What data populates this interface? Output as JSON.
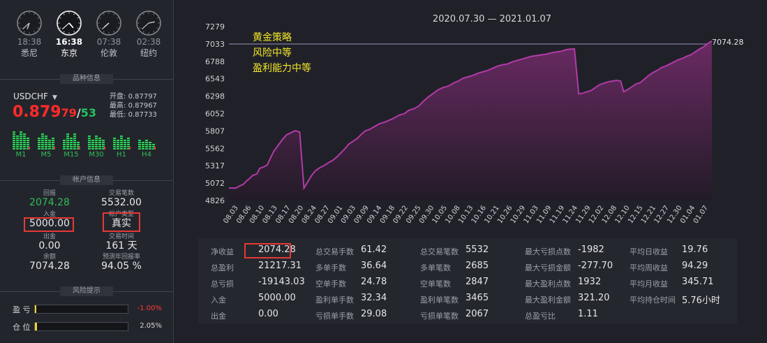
{
  "clocks": [
    {
      "time": "18:38",
      "city": "悉尼",
      "active": false,
      "h": 18.63,
      "m": 38
    },
    {
      "time": "16:38",
      "city": "东京",
      "active": true,
      "h": 16.63,
      "m": 38
    },
    {
      "time": "07:38",
      "city": "伦敦",
      "active": false,
      "h": 7.63,
      "m": 38
    },
    {
      "time": "02:38",
      "city": "纽约",
      "active": false,
      "h": 2.63,
      "m": 38
    }
  ],
  "sections": {
    "symbol_info": "品种信息",
    "account_info": "帐户信息",
    "risk_tips": "风险提示"
  },
  "symbol": {
    "name": "USDCHF",
    "price_main": "0.879",
    "price_digits": "79",
    "price_slash": "/",
    "price_spread": "53",
    "quotes": [
      {
        "label": "开盘:",
        "value": "0.87797"
      },
      {
        "label": "最高:",
        "value": "0.87967"
      },
      {
        "label": "最低:",
        "value": "0.87733"
      }
    ]
  },
  "timeframes": [
    {
      "label": "M1",
      "levels": [
        0.85,
        0.65,
        0.9,
        0.75,
        0.6
      ]
    },
    {
      "label": "M5",
      "levels": [
        0.55,
        0.8,
        0.7,
        0.45,
        0.6
      ]
    },
    {
      "label": "M15",
      "levels": [
        0.5,
        0.75,
        0.6,
        0.8,
        0.4
      ]
    },
    {
      "label": "M30",
      "levels": [
        0.7,
        0.5,
        0.65,
        0.55,
        0.45
      ]
    },
    {
      "label": "H1",
      "levels": [
        0.6,
        0.45,
        0.7,
        0.5,
        0.55
      ]
    },
    {
      "label": "H4",
      "levels": [
        0.45,
        0.35,
        0.5,
        0.4,
        0.3
      ]
    }
  ],
  "account": {
    "return_label": "回报",
    "return_value": "2074.28",
    "trades_label": "交易笔数",
    "trades_value": "5532.00",
    "deposit_label": "入金",
    "deposit_value": "5000.00",
    "type_label": "帐户类型",
    "type_value": "真实",
    "withdraw_label": "出金",
    "withdraw_value": "0.00",
    "time_label": "交易时间",
    "time_value": "161 天",
    "balance_label": "余额",
    "balance_value": "7074.28",
    "annual_label": "预测年回报率",
    "annual_value": "94.05 %"
  },
  "risk": [
    {
      "label": "盈 亏",
      "value": "-1.00%",
      "fill": 0.012,
      "color": "#ff3b3b"
    },
    {
      "label": "仓 位",
      "value": "2.05%",
      "fill": 0.02,
      "color": "#d9d9d9"
    }
  ],
  "chart_data": {
    "type": "area",
    "title": "2020.07.30 — 2021.01.07",
    "annotations": [
      "黄金策略",
      "风险中等",
      "盈利能力中等"
    ],
    "last_value_label": "7074.28",
    "y_ticks": [
      4826,
      5072,
      5317,
      5562,
      5807,
      6052,
      6298,
      6543,
      6788,
      7033,
      7279
    ],
    "ylim": [
      4826,
      7279
    ],
    "reference_line": 7033,
    "x_labels": [
      "08.03",
      "08.06",
      "08.10",
      "08.13",
      "08.17",
      "08.20",
      "08.24",
      "08.27",
      "09.01",
      "09.03",
      "09.09",
      "09.14",
      "09.18",
      "09.22",
      "09.25",
      "09.30",
      "10.05",
      "10.08",
      "10.13",
      "10.16",
      "10.21",
      "10.26",
      "10.29",
      "11.03",
      "11.09",
      "11.19",
      "11.24",
      "11.29",
      "12.02",
      "12.08",
      "12.10",
      "12.15",
      "12.21",
      "12.27",
      "12.30",
      "01.04",
      "01.07"
    ],
    "series": [
      {
        "points": [
          [
            0,
            5002
          ],
          [
            1,
            5000
          ],
          [
            1.5,
            5030
          ],
          [
            2,
            5050
          ],
          [
            2.5,
            5100
          ],
          [
            3,
            5140
          ],
          [
            3.4,
            5180
          ],
          [
            4,
            5200
          ],
          [
            4.4,
            5280
          ],
          [
            5,
            5300
          ],
          [
            5.5,
            5330
          ],
          [
            5.9,
            5420
          ],
          [
            6.4,
            5520
          ],
          [
            7,
            5600
          ],
          [
            7.6,
            5680
          ],
          [
            8.2,
            5750
          ],
          [
            8.8,
            5780
          ],
          [
            9.5,
            5810
          ],
          [
            10.1,
            5790
          ],
          [
            10.7,
            5000
          ],
          [
            11.2,
            5080
          ],
          [
            11.8,
            5180
          ],
          [
            12.4,
            5250
          ],
          [
            13,
            5290
          ],
          [
            13.6,
            5320
          ],
          [
            14.2,
            5360
          ],
          [
            14.8,
            5390
          ],
          [
            15.4,
            5440
          ],
          [
            16,
            5500
          ],
          [
            16.5,
            5550
          ],
          [
            17.1,
            5620
          ],
          [
            17.7,
            5660
          ],
          [
            18.3,
            5700
          ],
          [
            18.9,
            5760
          ],
          [
            19.5,
            5810
          ],
          [
            20.1,
            5830
          ],
          [
            20.8,
            5870
          ],
          [
            21.5,
            5910
          ],
          [
            22.2,
            5930
          ],
          [
            22.9,
            5960
          ],
          [
            23.6,
            5990
          ],
          [
            24.3,
            6030
          ],
          [
            25,
            6050
          ],
          [
            25.7,
            6100
          ],
          [
            26.4,
            6120
          ],
          [
            27.1,
            6160
          ],
          [
            27.8,
            6230
          ],
          [
            28.5,
            6290
          ],
          [
            29.2,
            6340
          ],
          [
            29.9,
            6390
          ],
          [
            30.6,
            6420
          ],
          [
            31.3,
            6440
          ],
          [
            32,
            6480
          ],
          [
            32.7,
            6510
          ],
          [
            33.4,
            6550
          ],
          [
            34.1,
            6570
          ],
          [
            34.8,
            6590
          ],
          [
            35.5,
            6620
          ],
          [
            36.2,
            6640
          ],
          [
            36.9,
            6660
          ],
          [
            37.6,
            6690
          ],
          [
            38.3,
            6720
          ],
          [
            39,
            6740
          ],
          [
            39.7,
            6750
          ],
          [
            40.4,
            6780
          ],
          [
            41.1,
            6800
          ],
          [
            41.8,
            6820
          ],
          [
            42.5,
            6840
          ],
          [
            43.2,
            6860
          ],
          [
            43.9,
            6870
          ],
          [
            44.6,
            6880
          ],
          [
            45.3,
            6890
          ],
          [
            46,
            6910
          ],
          [
            46.7,
            6920
          ],
          [
            47.4,
            6930
          ],
          [
            48,
            6950
          ],
          [
            48.6,
            6960
          ],
          [
            49.3,
            6965
          ],
          [
            49.9,
            6330
          ],
          [
            50.5,
            6340
          ],
          [
            51.1,
            6360
          ],
          [
            51.7,
            6380
          ],
          [
            52.3,
            6420
          ],
          [
            52.9,
            6460
          ],
          [
            53.5,
            6480
          ],
          [
            54.1,
            6500
          ],
          [
            54.7,
            6510
          ],
          [
            55.3,
            6520
          ],
          [
            55.9,
            6510
          ],
          [
            56.3,
            6360
          ],
          [
            56.9,
            6390
          ],
          [
            57.5,
            6430
          ],
          [
            58.1,
            6470
          ],
          [
            58.7,
            6490
          ],
          [
            59.3,
            6540
          ],
          [
            59.9,
            6590
          ],
          [
            60.5,
            6630
          ],
          [
            61.1,
            6660
          ],
          [
            61.7,
            6700
          ],
          [
            62.3,
            6720
          ],
          [
            62.9,
            6750
          ],
          [
            63.5,
            6780
          ],
          [
            64.1,
            6810
          ],
          [
            64.7,
            6830
          ],
          [
            65.3,
            6860
          ],
          [
            65.9,
            6880
          ],
          [
            66.5,
            6920
          ],
          [
            67.1,
            6960
          ],
          [
            67.7,
            6990
          ],
          [
            68.3,
            7040
          ],
          [
            68.9,
            7074.28
          ]
        ]
      }
    ],
    "x_max": 68.9,
    "colors": {
      "line": "#b23aa8",
      "fill_top": "#6a2a63",
      "fill_bottom": "#221b27",
      "ref_line": "#9a92c0",
      "annotation": "#f4e829"
    }
  },
  "stats": [
    [
      {
        "k": "净收益",
        "v": "2074.28"
      },
      {
        "k": "总交易手数",
        "v": "61.42"
      },
      {
        "k": "总交易笔数",
        "v": "5532"
      },
      {
        "k": "最大亏损点数",
        "v": "-1982"
      },
      {
        "k": "平均日收益",
        "v": "19.76"
      }
    ],
    [
      {
        "k": "总盈利",
        "v": "21217.31"
      },
      {
        "k": "多单手数",
        "v": "36.64"
      },
      {
        "k": "多单笔数",
        "v": "2685"
      },
      {
        "k": "最大亏损金额",
        "v": "-277.70"
      },
      {
        "k": "平均周收益",
        "v": "94.29"
      }
    ],
    [
      {
        "k": "总亏损",
        "v": "-19143.03"
      },
      {
        "k": "空单手数",
        "v": "24.78"
      },
      {
        "k": "空单笔数",
        "v": "2847"
      },
      {
        "k": "最大盈利点数",
        "v": "1932"
      },
      {
        "k": "平均月收益",
        "v": "345.71"
      }
    ],
    [
      {
        "k": "入金",
        "v": "5000.00"
      },
      {
        "k": "盈利单手数",
        "v": "32.34"
      },
      {
        "k": "盈利单笔数",
        "v": "3465"
      },
      {
        "k": "最大盈利金额",
        "v": "321.20"
      },
      {
        "k": "平均持仓时间",
        "v": "5.76小时"
      }
    ],
    [
      {
        "k": "出金",
        "v": "0.00"
      },
      {
        "k": "亏损单手数",
        "v": "29.08"
      },
      {
        "k": "亏损单笔数",
        "v": "2067"
      },
      {
        "k": "总盈亏比",
        "v": "1.11"
      }
    ]
  ]
}
